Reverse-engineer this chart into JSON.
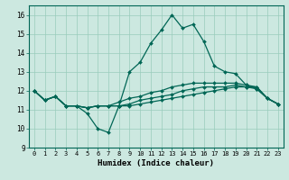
{
  "xlabel": "Humidex (Indice chaleur)",
  "ylabel": "",
  "xlim": [
    -0.5,
    23.5
  ],
  "ylim": [
    9,
    16.5
  ],
  "yticks": [
    9,
    10,
    11,
    12,
    13,
    14,
    15,
    16
  ],
  "xticks": [
    0,
    1,
    2,
    3,
    4,
    5,
    6,
    7,
    8,
    9,
    10,
    11,
    12,
    13,
    14,
    15,
    16,
    17,
    18,
    19,
    20,
    21,
    22,
    23
  ],
  "bg_color": "#cce8e0",
  "grid_color": "#99ccbb",
  "line_color": "#006655",
  "curves": [
    [
      12.0,
      11.5,
      11.7,
      11.2,
      11.2,
      10.8,
      10.0,
      9.8,
      11.2,
      13.0,
      13.5,
      14.5,
      15.2,
      16.0,
      15.3,
      15.5,
      14.6,
      13.3,
      13.0,
      12.9,
      12.3,
      12.2,
      11.6,
      11.3
    ],
    [
      12.0,
      11.5,
      11.7,
      11.2,
      11.2,
      11.1,
      11.2,
      11.2,
      11.2,
      11.2,
      11.3,
      11.4,
      11.5,
      11.6,
      11.7,
      11.8,
      11.9,
      12.0,
      12.1,
      12.2,
      12.2,
      12.2,
      11.6,
      11.3
    ],
    [
      12.0,
      11.5,
      11.7,
      11.2,
      11.2,
      11.1,
      11.2,
      11.2,
      11.2,
      11.3,
      11.5,
      11.6,
      11.7,
      11.8,
      12.0,
      12.1,
      12.2,
      12.2,
      12.2,
      12.3,
      12.2,
      12.1,
      11.6,
      11.3
    ],
    [
      12.0,
      11.5,
      11.7,
      11.2,
      11.2,
      11.1,
      11.2,
      11.2,
      11.4,
      11.6,
      11.7,
      11.9,
      12.0,
      12.2,
      12.3,
      12.4,
      12.4,
      12.4,
      12.4,
      12.4,
      12.3,
      12.1,
      11.6,
      11.3
    ]
  ],
  "marker": "D",
  "marker_size": 2.0,
  "linewidth": 0.9,
  "xtick_fontsize": 5.0,
  "ytick_fontsize": 5.5,
  "xlabel_fontsize": 6.5
}
